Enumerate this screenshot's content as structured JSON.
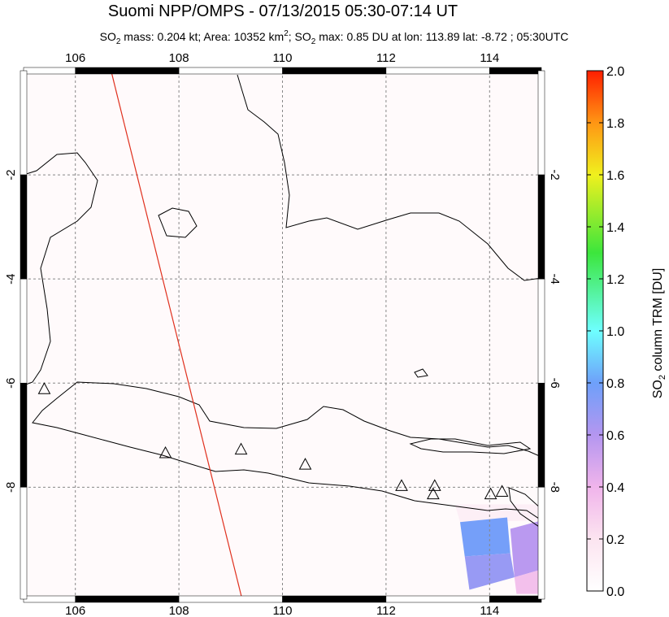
{
  "chart_data": {
    "type": "map",
    "title": "Suomi NPP/OMPS - 07/13/2015 05:30-07:14 UT",
    "subtitle": [
      "SO",
      "2",
      " mass: 0.204 kt; Area: 10352 km",
      "2",
      "; SO",
      "2",
      " max: 0.85 DU at lon: 113.89 lat: -8.72 ; 05:30UTC"
    ],
    "xlim": [
      105,
      115
    ],
    "ylim": [
      -10.15,
      0
    ],
    "xticks": [
      106,
      108,
      110,
      112,
      114
    ],
    "yticks": [
      -2,
      -4,
      -6,
      -8
    ],
    "grid": true,
    "volcanoes": {
      "x": [
        105.4,
        107.74,
        109.2,
        110.44,
        112.3,
        112.94,
        112.91,
        114.02,
        114.24
      ],
      "y": [
        -6.11,
        -7.34,
        -7.27,
        -7.56,
        -7.97,
        -7.97,
        -8.13,
        -8.13,
        -8.08
      ]
    },
    "orbit_track": {
      "color": "#e0301e",
      "x": [
        106.69,
        109.22
      ],
      "y": [
        0,
        -10.15
      ]
    },
    "so2_cells": [
      {
        "lon": [
          113.33,
          115,
          115,
          113.43
        ],
        "lat": [
          -8.33,
          -8.33,
          -8.64,
          -8.67
        ],
        "value": 0.12
      },
      {
        "lon": [
          113.43,
          114.34,
          114.4,
          113.52
        ],
        "lat": [
          -8.67,
          -8.58,
          -9.27,
          -9.33
        ],
        "value": 0.78
      },
      {
        "lon": [
          113.52,
          114.4,
          114.48,
          113.61
        ],
        "lat": [
          -9.33,
          -9.27,
          -9.73,
          -9.97
        ],
        "value": 0.68
      },
      {
        "lon": [
          114.4,
          115,
          115,
          114.48
        ],
        "lat": [
          -8.8,
          -8.64,
          -9.58,
          -9.73
        ],
        "value": 0.58
      },
      {
        "lon": [
          114.48,
          115,
          115,
          114.52
        ],
        "lat": [
          -9.73,
          -9.58,
          -10.05,
          -10.05
        ],
        "value": 0.35
      }
    ],
    "colorbar": {
      "label": [
        "SO",
        "2",
        " column TRM [DU]"
      ],
      "clim": [
        0,
        2
      ],
      "ticks": [
        {
          "value": 0,
          "label": "0.0"
        },
        0.2,
        0.4,
        0.6,
        0.8,
        {
          "value": 1,
          "label": "1.0"
        },
        1.2,
        1.4,
        1.6,
        1.8,
        {
          "value": 2,
          "label": "2.0"
        }
      ]
    }
  }
}
